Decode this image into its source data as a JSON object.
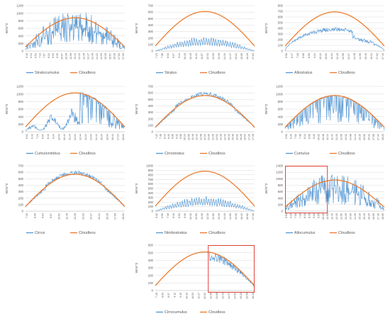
{
  "legend": {
    "cloudless": "Cloudless"
  },
  "colors": {
    "measured": "#5b9bd5",
    "cloudless": "#ed7d31",
    "highlight": "#e0433b",
    "grid": "#d9d9d9",
    "text": "#595959"
  },
  "chart_data": [
    {
      "type": "line",
      "series_name": "Stratocumulus",
      "ylabel": "W/m^2",
      "ylim": [
        0,
        1200
      ],
      "yticks": [
        0,
        200,
        400,
        600,
        800,
        1000,
        1200
      ],
      "xticks": [
        "5:49",
        "6:24",
        "6:53",
        "7:23",
        "7:57",
        "8:31",
        "9:03",
        "9:35",
        "10:07",
        "10:39",
        "11:09",
        "11:41",
        "12:13",
        "12:45",
        "13:17",
        "13:49",
        "14:21",
        "14:53",
        "15:25",
        "15:57",
        "16:29",
        "17:03",
        "17:39"
      ],
      "cloudless_peak": 880,
      "measured_peak": 1020,
      "measured_profile": "broken",
      "highlight": null
    },
    {
      "type": "line",
      "series_name": "Stratus",
      "ylabel": "W/m^2",
      "ylim": [
        0,
        700
      ],
      "yticks": [
        0,
        100,
        200,
        300,
        400,
        500,
        600,
        700
      ],
      "xticks": [
        "7:23",
        "7:58",
        "8:33",
        "9:07",
        "9:41",
        "10:15",
        "10:49",
        "11:23",
        "11:57",
        "12:31",
        "13:05",
        "13:39",
        "14:13",
        "14:47",
        "15:21",
        "15:55",
        "16:29",
        "17:03"
      ],
      "cloudless_peak": 610,
      "measured_peak": 200,
      "measured_profile": "overcast",
      "highlight": null
    },
    {
      "type": "line",
      "series_name": "Altostratus",
      "ylabel": "W/m^2",
      "ylim": [
        0,
        800
      ],
      "yticks": [
        0,
        100,
        200,
        300,
        400,
        500,
        600,
        700,
        800
      ],
      "xticks": [
        "6:06",
        "6:47",
        "7:28",
        "8:09",
        "8:50",
        "9:31",
        "10:12",
        "10:53",
        "11:34",
        "12:15",
        "12:56",
        "13:37",
        "14:18",
        "14:59",
        "15:40",
        "16:21",
        "17:02",
        "17:43"
      ],
      "cloudless_peak": 690,
      "measured_peak": 420,
      "measured_profile": "thick",
      "highlight": null
    },
    {
      "type": "line",
      "series_name": "Cumulonimbus",
      "ylabel": "W/m^2",
      "ylim": [
        0,
        1200
      ],
      "yticks": [
        0,
        200,
        400,
        600,
        800,
        1000,
        1200
      ],
      "xticks": [
        "6:04",
        "6:44",
        "7:24",
        "8:04",
        "8:44",
        "9:24",
        "10:04",
        "10:44",
        "11:24",
        "12:04",
        "12:44",
        "13:24",
        "14:04",
        "14:44",
        "15:24",
        "16:04",
        "16:44",
        "17:24",
        "18:04"
      ],
      "cloudless_peak": 1030,
      "measured_peak": 1090,
      "measured_profile": "storm",
      "highlight": null
    },
    {
      "type": "line",
      "series_name": "Cirrostratus",
      "ylabel": "W/m^2",
      "ylim": [
        0,
        700
      ],
      "yticks": [
        0,
        100,
        200,
        300,
        400,
        500,
        600,
        700
      ],
      "xticks": [
        "7:22",
        "7:48",
        "8:14",
        "8:40",
        "9:06",
        "9:32",
        "9:58",
        "10:24",
        "10:50",
        "11:16",
        "11:42",
        "12:08",
        "12:34",
        "13:00",
        "13:26",
        "13:52",
        "14:18",
        "14:44",
        "15:10",
        "15:36",
        "16:02",
        "16:28",
        "16:54",
        "17:20",
        "17:49"
      ],
      "cloudless_peak": 560,
      "measured_peak": 620,
      "measured_profile": "thin",
      "highlight": null
    },
    {
      "type": "line",
      "series_name": "Cumulus",
      "ylabel": "W/m^2",
      "ylim": [
        0,
        1200
      ],
      "yticks": [
        0,
        200,
        400,
        600,
        800,
        1000,
        1200
      ],
      "xticks": [
        "5:50",
        "6:26",
        "7:02",
        "7:38",
        "8:14",
        "8:50",
        "9:26",
        "10:02",
        "10:38",
        "11:14",
        "11:44",
        "12:20",
        "12:56",
        "13:32",
        "14:08",
        "14:44",
        "15:20",
        "15:56",
        "16:32",
        "17:08",
        "17:44",
        "18:20"
      ],
      "cloudless_peak": 960,
      "measured_peak": 1000,
      "measured_profile": "dips",
      "highlight": null
    },
    {
      "type": "line",
      "series_name": "Cirrus",
      "ylabel": "W/m^2",
      "ylim": [
        0,
        700
      ],
      "yticks": [
        0,
        100,
        200,
        300,
        400,
        500,
        600,
        700
      ],
      "xticks": [
        "7:15",
        "8:09",
        "9:03",
        "9:57",
        "10:51",
        "11:45",
        "12:39",
        "13:33",
        "14:27",
        "15:21",
        "16:15",
        "17:09",
        "18:03"
      ],
      "cloudless_peak": 570,
      "measured_peak": 620,
      "measured_profile": "thin",
      "highlight": null
    },
    {
      "type": "line",
      "series_name": "Nimbostratus",
      "ylabel": "W/m^2",
      "ylim": [
        0,
        1000
      ],
      "yticks": [
        0,
        100,
        200,
        300,
        400,
        500,
        600,
        700,
        800,
        900,
        1000
      ],
      "xticks": [
        "6:10",
        "6:50",
        "7:30",
        "8:10",
        "8:50",
        "9:30",
        "10:10",
        "10:50",
        "11:30",
        "12:10",
        "12:50",
        "13:30",
        "14:10",
        "14:50",
        "15:30",
        "16:10",
        "16:50",
        "17:30"
      ],
      "cloudless_peak": 880,
      "measured_peak": 290,
      "measured_profile": "overcast",
      "highlight": null
    },
    {
      "type": "line",
      "series_name": "Altocumulus",
      "ylabel": "W/m^2",
      "ylim": [
        0,
        1400
      ],
      "yticks": [
        0,
        200,
        400,
        600,
        800,
        1000,
        1200,
        1400
      ],
      "xticks": [
        "5:50",
        "6:25",
        "7:00",
        "7:35",
        "8:10",
        "8:45",
        "9:20",
        "9:55",
        "10:30",
        "11:05",
        "11:40",
        "12:15",
        "12:50",
        "13:25",
        "14:00",
        "14:35",
        "15:10",
        "15:45",
        "16:20",
        "16:55",
        "17:30",
        "18:05"
      ],
      "cloudless_peak": 960,
      "measured_peak": 1290,
      "measured_profile": "broken",
      "highlight": [
        0.0,
        0.43
      ]
    },
    {
      "type": "line",
      "series_name": "Cirrocumulus",
      "ylabel": "W/m^2",
      "ylim": [
        0,
        600
      ],
      "yticks": [
        0,
        100,
        200,
        300,
        400,
        500,
        600
      ],
      "xticks": [
        "7:29",
        "8:03",
        "8:37",
        "9:11",
        "9:45",
        "10:19",
        "10:53",
        "11:27",
        "12:01",
        "12:35",
        "13:09",
        "13:43",
        "14:17",
        "14:51",
        "15:25",
        "15:59",
        "16:33"
      ],
      "cloudless_peak": 510,
      "measured_peak": 490,
      "measured_profile": "thin_late",
      "highlight": [
        0.53,
        1.0
      ]
    }
  ]
}
